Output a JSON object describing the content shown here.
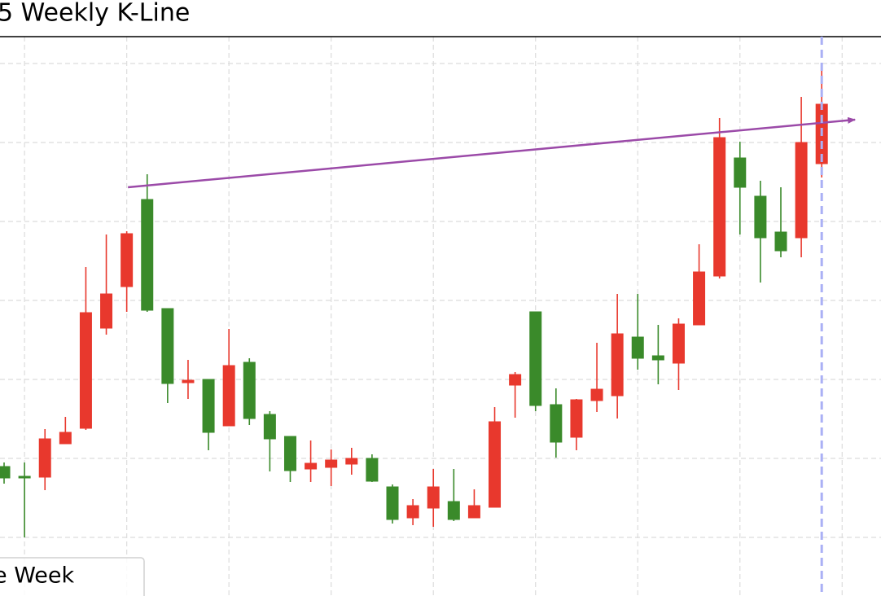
{
  "chart_data": {
    "type": "candlestick",
    "title": "5 Weekly K-Line",
    "x": [
      0,
      1,
      2,
      3,
      4,
      5,
      6,
      7,
      8,
      9,
      10,
      11,
      12,
      13,
      14,
      15,
      16,
      17,
      18,
      19,
      20,
      21,
      22,
      23,
      24,
      25,
      26,
      27,
      28,
      29,
      30,
      31,
      32,
      33,
      34,
      35,
      36,
      37,
      38,
      39,
      40
    ],
    "series": [
      {
        "name": "e Week",
        "up_color": "#e8382d",
        "down_color": "#3a8a2a",
        "open": [
          159,
          147,
          146,
          187,
          206,
          329,
          380,
          487,
          353,
          262,
          266,
          209,
          287,
          223,
          196,
          156,
          158,
          162,
          169,
          134,
          96,
          108,
          116,
          96,
          109,
          259,
          349,
          235,
          195,
          240,
          246,
          318,
          295,
          286,
          333,
          393,
          538,
          491,
          447,
          440,
          531
        ],
        "close": [
          145,
          146,
          193,
          201,
          348,
          371,
          445,
          351,
          261,
          265,
          201,
          283,
          218,
          193,
          154,
          163,
          167,
          169,
          141,
          94,
          111,
          134,
          94,
          111,
          214,
          272,
          234,
          189,
          241,
          254,
          322,
          292,
          290,
          334,
          398,
          563,
          502,
          440,
          424,
          557,
          604
        ],
        "high": [
          164,
          164,
          205,
          220,
          404,
          444,
          448,
          518,
          353,
          290,
          266,
          328,
          292,
          227,
          196,
          191,
          180,
          182,
          174,
          137,
          119,
          156,
          156,
          131,
          232,
          275,
          349,
          255,
          242,
          311,
          371,
          371,
          333,
          341,
          432,
          587,
          558,
          510,
          502,
          613,
          653
        ],
        "low": [
          138,
          72,
          130,
          187,
          204,
          321,
          349,
          349,
          237,
          242,
          179,
          209,
          210,
          153,
          140,
          140,
          135,
          149,
          140,
          89,
          87,
          85,
          92,
          96,
          109,
          219,
          227,
          170,
          179,
          226,
          218,
          278,
          260,
          253,
          333,
          390,
          444,
          385,
          416,
          416,
          514
        ]
      }
    ],
    "xlim": [
      -0.2,
      42.9
    ],
    "xticks": [
      1,
      6,
      11,
      16,
      21,
      26,
      31,
      36,
      41
    ],
    "ylim": [
      0,
      687
    ],
    "yticks": [
      72,
      169,
      266,
      363,
      460,
      557,
      654
    ],
    "grid": true,
    "trendline": {
      "color": "#9b4aa8",
      "start": [
        6.06,
        502
      ],
      "end": [
        41.63,
        585
      ]
    },
    "vline": {
      "color": "#aab0f5",
      "x": 40
    }
  }
}
